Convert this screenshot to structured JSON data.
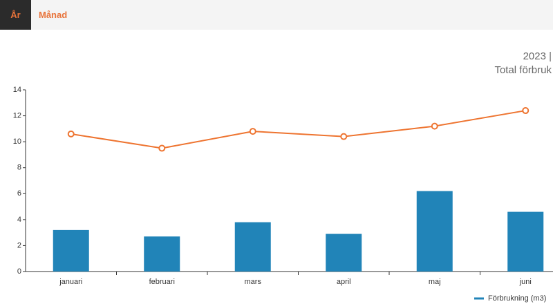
{
  "tabs": [
    "År",
    "Månad"
  ],
  "chart_data": {
    "type": "bar",
    "title": "2023 |",
    "subtitle": "Total förbruk",
    "categories": [
      "januari",
      "februari",
      "mars",
      "april",
      "maj",
      "juni"
    ],
    "series": [
      {
        "name": "Förbrukning (m3)",
        "type": "bar",
        "color": "#2184b8",
        "values": [
          3.2,
          2.7,
          3.8,
          2.9,
          6.2,
          4.6
        ]
      },
      {
        "type": "line",
        "color": "#ee7430",
        "values": [
          10.6,
          9.5,
          10.8,
          10.4,
          11.2,
          12.4
        ]
      }
    ],
    "ylim": [
      0,
      14
    ],
    "yticks": [
      0,
      2,
      4,
      6,
      8,
      10,
      12,
      14
    ]
  }
}
